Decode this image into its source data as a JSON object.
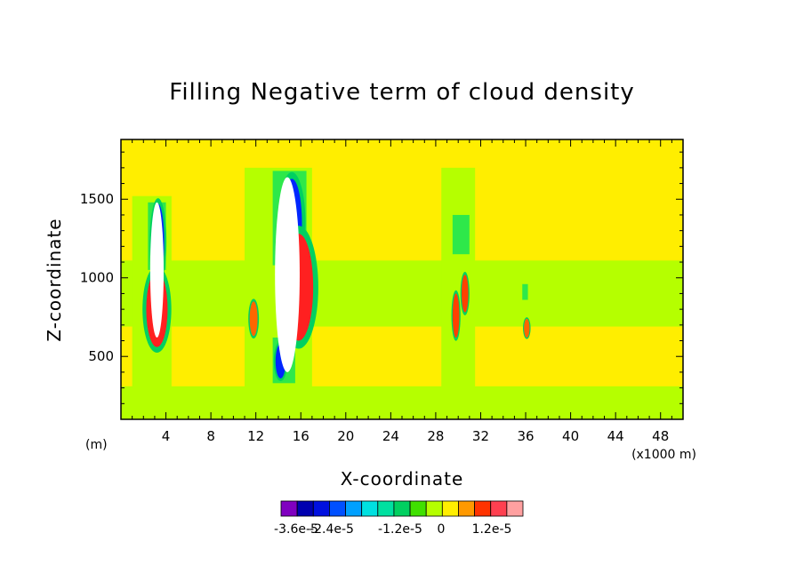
{
  "chart_data": {
    "type": "heatmap",
    "title": "Filling Negative term of cloud density",
    "xlabel": "X-coordinate",
    "ylabel": "Z-coordinate",
    "x_unit_label": "(x1000 m)",
    "y_unit_label": "(m)",
    "xlim": [
      0,
      50
    ],
    "ylim": [
      100,
      1880
    ],
    "x_ticks": [
      4,
      8,
      12,
      16,
      20,
      24,
      28,
      32,
      36,
      40,
      44,
      48
    ],
    "y_ticks": [
      500,
      1000,
      1500
    ],
    "background_color": "#ffee00",
    "regions": [
      {
        "name": "band-low",
        "x": [
          0,
          50
        ],
        "y": [
          100,
          310
        ],
        "color": "#b5ff00"
      },
      {
        "name": "band-mid",
        "x": [
          0,
          50
        ],
        "y": [
          690,
          1110
        ],
        "color": "#b5ff00"
      },
      {
        "name": "column-a",
        "x": [
          1,
          4.5
        ],
        "y": [
          300,
          1520
        ],
        "color": "#b5ff00"
      },
      {
        "name": "column-b",
        "x": [
          11,
          17
        ],
        "y": [
          300,
          1700
        ],
        "color": "#b5ff00"
      },
      {
        "name": "column-c",
        "x": [
          28.5,
          31.5
        ],
        "y": [
          300,
          1700
        ],
        "color": "#b5ff00"
      },
      {
        "name": "column-d",
        "x": [
          2.4,
          4
        ],
        "y": [
          1050,
          1480
        ],
        "color": "#2ee84a"
      },
      {
        "name": "column-e",
        "x": [
          13.5,
          16.5
        ],
        "y": [
          1080,
          1680
        ],
        "color": "#2ee84a"
      },
      {
        "name": "column-f",
        "x": [
          13.5,
          15.5
        ],
        "y": [
          330,
          620
        ],
        "color": "#2ee84a"
      },
      {
        "name": "column-g",
        "x": [
          29.5,
          31
        ],
        "y": [
          1150,
          1400
        ],
        "color": "#2ee84a"
      },
      {
        "name": "column-h",
        "x": [
          35.7,
          36.2
        ],
        "y": [
          860,
          960
        ],
        "color": "#2ee84a"
      }
    ],
    "cores": [
      {
        "name": "core-neg-1",
        "x": 3.3,
        "y": 1230,
        "rx": 0.55,
        "ry": 240,
        "color": "#0026ff"
      },
      {
        "name": "core-neg-2",
        "x": 15.2,
        "y": 1350,
        "rx": 0.9,
        "ry": 280,
        "color": "#0026ff"
      },
      {
        "name": "core-neg-3",
        "x": 14.2,
        "y": 470,
        "rx": 0.45,
        "ry": 110,
        "color": "#0026ff"
      },
      {
        "name": "core-pos-1",
        "x": 3.2,
        "y": 800,
        "rx": 0.95,
        "ry": 240,
        "color": "#ff2020"
      },
      {
        "name": "core-pos-2",
        "x": 15.8,
        "y": 940,
        "rx": 1.3,
        "ry": 340,
        "color": "#ff2020"
      },
      {
        "name": "core-pos-3",
        "x": 11.8,
        "y": 740,
        "rx": 0.35,
        "ry": 110,
        "color": "#ff6600"
      },
      {
        "name": "core-pos-4",
        "x": 29.8,
        "y": 760,
        "rx": 0.3,
        "ry": 140,
        "color": "#ff4000"
      },
      {
        "name": "core-pos-5",
        "x": 30.6,
        "y": 900,
        "rx": 0.3,
        "ry": 120,
        "color": "#ff4000"
      },
      {
        "name": "core-pos-6",
        "x": 36.1,
        "y": 680,
        "rx": 0.25,
        "ry": 60,
        "color": "#ff6600"
      }
    ],
    "holes": [
      {
        "name": "undefined-region-1",
        "x": 3.2,
        "y": 1050,
        "rx": 0.6,
        "ry": 430
      },
      {
        "name": "undefined-region-2",
        "x": 14.8,
        "y": 1020,
        "rx": 1.1,
        "ry": 620
      }
    ],
    "colorbar": {
      "colors": [
        "#8000c0",
        "#0000b0",
        "#0010e0",
        "#0050ff",
        "#00a0ff",
        "#00e0e0",
        "#00e0a0",
        "#00d060",
        "#40e000",
        "#b5ff00",
        "#ffee00",
        "#ff9900",
        "#ff3300",
        "#ff4050",
        "#ffa0a0"
      ],
      "labels": [
        "-3.6e-5",
        "-2.4e-5",
        "-1.2e-5",
        "0",
        "1.2e-5"
      ]
    }
  }
}
